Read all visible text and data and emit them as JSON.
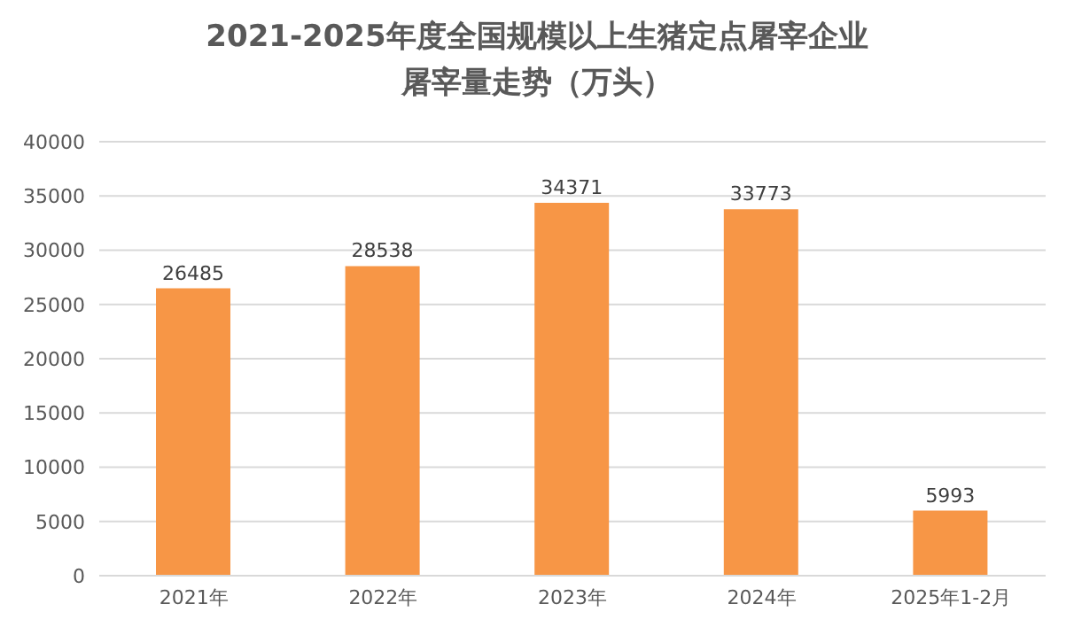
{
  "chart_data": {
    "type": "bar",
    "title": "2021-2025年度全国规模以上生猪定点屠宰企业屠宰量走势（万头）",
    "categories": [
      "2021年",
      "2022年",
      "2023年",
      "2024年",
      "2025年1-2月"
    ],
    "values": [
      26485,
      28538,
      34371,
      33773,
      5993
    ],
    "color": "#f79646",
    "ylim": [
      0,
      40000
    ],
    "yticks": [
      0,
      5000,
      10000,
      15000,
      20000,
      25000,
      30000,
      35000,
      40000
    ],
    "grid": "y",
    "data_labels": true,
    "legend": false
  }
}
